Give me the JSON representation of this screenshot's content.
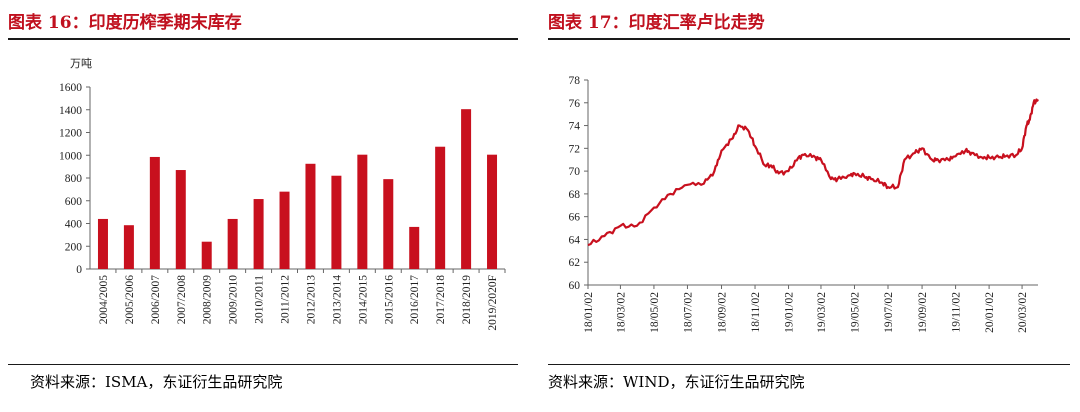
{
  "left": {
    "title": "图表 16：印度历榨季期末库存",
    "source": "资料来源：ISMA，东证衍生品研究院"
  },
  "right": {
    "title": "图表 17：印度汇率卢比走势",
    "source": "资料来源：WIND，东证衍生品研究院"
  },
  "colors": {
    "accent": "#c0101e",
    "bar": "#c8101e",
    "line": "#c8101e"
  },
  "chart_data": [
    {
      "type": "bar",
      "unit_label": "万吨",
      "ylim": [
        0,
        1600
      ],
      "yticks": [
        0,
        200,
        400,
        600,
        800,
        1000,
        1200,
        1400,
        1600
      ],
      "categories": [
        "2004/2005",
        "2005/2006",
        "2006/2007",
        "2007/2008",
        "2008/2009",
        "2009/2010",
        "2010/2011",
        "2011/2012",
        "2012/2013",
        "2013/2014",
        "2014/2015",
        "2015/2016",
        "2016/2017",
        "2017/2018",
        "2018/2019",
        "2019/2020F"
      ],
      "values": [
        440,
        385,
        985,
        870,
        240,
        440,
        615,
        680,
        925,
        820,
        1005,
        790,
        370,
        1075,
        1405,
        1005
      ],
      "grid": false
    },
    {
      "type": "line",
      "ylim": [
        60,
        78
      ],
      "yticks": [
        60,
        62,
        64,
        66,
        68,
        70,
        72,
        74,
        76,
        78
      ],
      "xticks": [
        "18/01/02",
        "18/03/02",
        "18/05/02",
        "18/07/02",
        "18/09/02",
        "18/11/02",
        "19/01/02",
        "19/03/02",
        "19/05/02",
        "19/07/02",
        "19/09/02",
        "19/11/02",
        "20/01/02",
        "20/03/02"
      ],
      "x": [
        "18/01/02",
        "18/02/01",
        "18/03/02",
        "18/04/01",
        "18/05/02",
        "18/06/01",
        "18/07/02",
        "18/08/01",
        "18/08/20",
        "18/09/02",
        "18/09/20",
        "18/10/05",
        "18/10/20",
        "18/11/02",
        "18/11/20",
        "18/12/01",
        "18/12/15",
        "19/01/02",
        "19/01/20",
        "19/02/01",
        "19/02/20",
        "19/03/02",
        "19/03/20",
        "19/04/01",
        "19/04/20",
        "19/05/02",
        "19/05/20",
        "19/06/01",
        "19/06/20",
        "19/07/02",
        "19/07/20",
        "19/08/01",
        "19/08/20",
        "19/09/02",
        "19/09/20",
        "19/10/01",
        "19/10/20",
        "19/11/02",
        "19/11/20",
        "19/12/01",
        "19/12/20",
        "20/01/02",
        "20/01/20",
        "20/02/01",
        "20/02/20",
        "20/03/02",
        "20/03/10",
        "20/03/16",
        "20/03/23",
        "20/03/31"
      ],
      "values": [
        63.5,
        64.3,
        65.2,
        65.2,
        66.8,
        68.0,
        68.8,
        68.9,
        70.0,
        71.8,
        72.8,
        74.0,
        73.6,
        72.2,
        70.5,
        70.5,
        69.8,
        70.0,
        71.2,
        71.5,
        71.2,
        71.0,
        69.3,
        69.3,
        69.6,
        69.8,
        69.5,
        69.3,
        69.0,
        68.6,
        68.6,
        71.0,
        71.6,
        72.0,
        71.0,
        71.0,
        71.0,
        71.3,
        71.8,
        71.6,
        71.2,
        71.2,
        71.2,
        71.3,
        71.4,
        72.0,
        74.0,
        74.5,
        76.0,
        76.3
      ],
      "grid": false
    }
  ]
}
